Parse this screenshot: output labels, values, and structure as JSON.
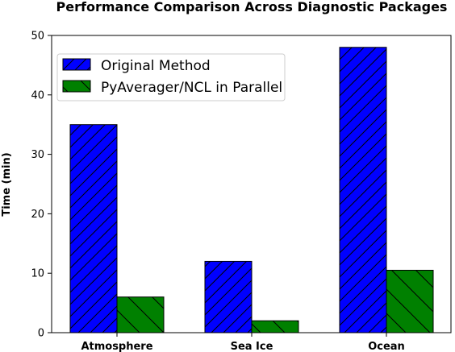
{
  "chart_data": {
    "type": "bar",
    "title": "Performance Comparison Across Diagnostic Packages",
    "xlabel": "",
    "ylabel": "Time (min)",
    "categories": [
      "Atmosphere",
      "Sea Ice",
      "Ocean"
    ],
    "series": [
      {
        "name": "Original Method",
        "values": [
          35,
          12,
          48
        ],
        "color": "#0000ff",
        "hatch": "forward-diagonal"
      },
      {
        "name": "PyAverager/NCL in Parallel",
        "values": [
          6,
          2,
          10.5
        ],
        "color": "#008000",
        "hatch": "back-diagonal"
      }
    ],
    "ylim": [
      0,
      50
    ],
    "yticks": [
      0,
      10,
      20,
      30,
      40,
      50
    ],
    "grid": false,
    "legend": "upper-left"
  }
}
